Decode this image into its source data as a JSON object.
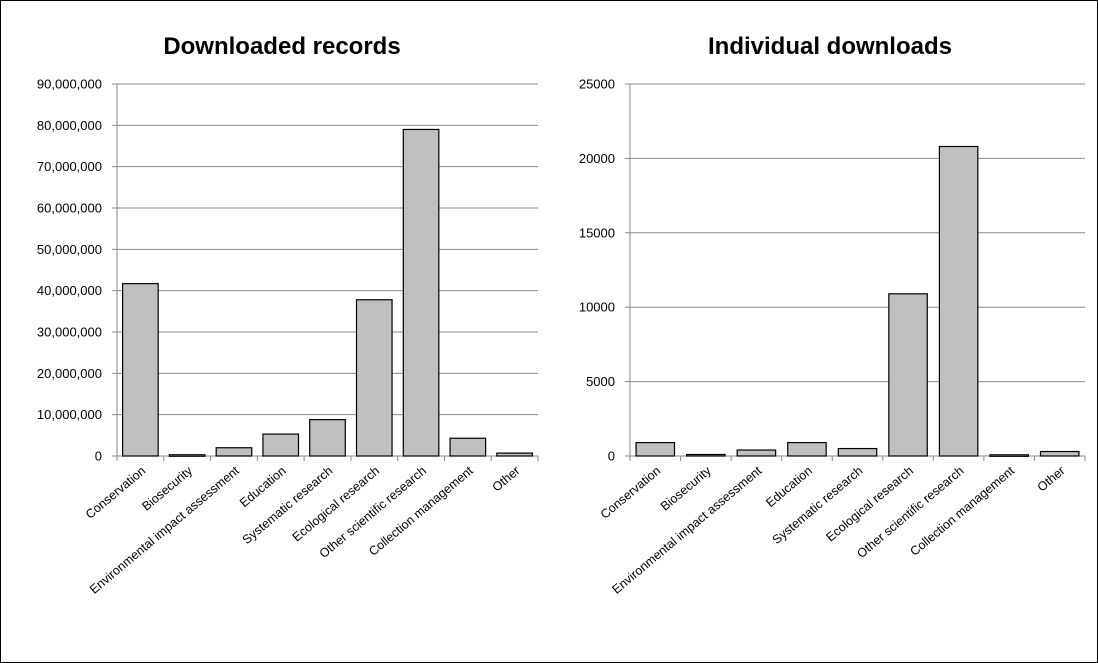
{
  "chart_data": [
    {
      "type": "bar",
      "title": "Downloaded records",
      "xlabel": "",
      "ylabel": "",
      "ylim": [
        0,
        90000000
      ],
      "yticks": [
        0,
        10000000,
        20000000,
        30000000,
        40000000,
        50000000,
        60000000,
        70000000,
        80000000,
        90000000
      ],
      "ytick_labels": [
        "0",
        "10,000,000",
        "20,000,000",
        "30,000,000",
        "40,000,000",
        "50,000,000",
        "60,000,000",
        "70,000,000",
        "80,000,000",
        "90,000,000"
      ],
      "categories": [
        "Conservation",
        "Biosecurity",
        "Environmental impact assessment",
        "Education",
        "Systematic research",
        "Ecological research",
        "Other scientific research",
        "Collection management",
        "Other"
      ],
      "values": [
        41700000,
        300000,
        2000000,
        5300000,
        8800000,
        37800000,
        79000000,
        4300000,
        700000
      ],
      "grid": true,
      "bar_color": "#c0c0c0"
    },
    {
      "type": "bar",
      "title": "Individual downloads",
      "xlabel": "",
      "ylabel": "",
      "ylim": [
        0,
        25000
      ],
      "yticks": [
        0,
        5000,
        10000,
        15000,
        20000,
        25000
      ],
      "ytick_labels": [
        "0",
        "5000",
        "10000",
        "15000",
        "20000",
        "25000"
      ],
      "categories": [
        "Conservation",
        "Biosecurity",
        "Environmental impact assessment",
        "Education",
        "Systematic research",
        "Ecological research",
        "Other scientific research",
        "Collection management",
        "Other"
      ],
      "values": [
        900,
        100,
        400,
        900,
        500,
        10900,
        20800,
        80,
        300
      ],
      "grid": true,
      "bar_color": "#c0c0c0"
    }
  ]
}
